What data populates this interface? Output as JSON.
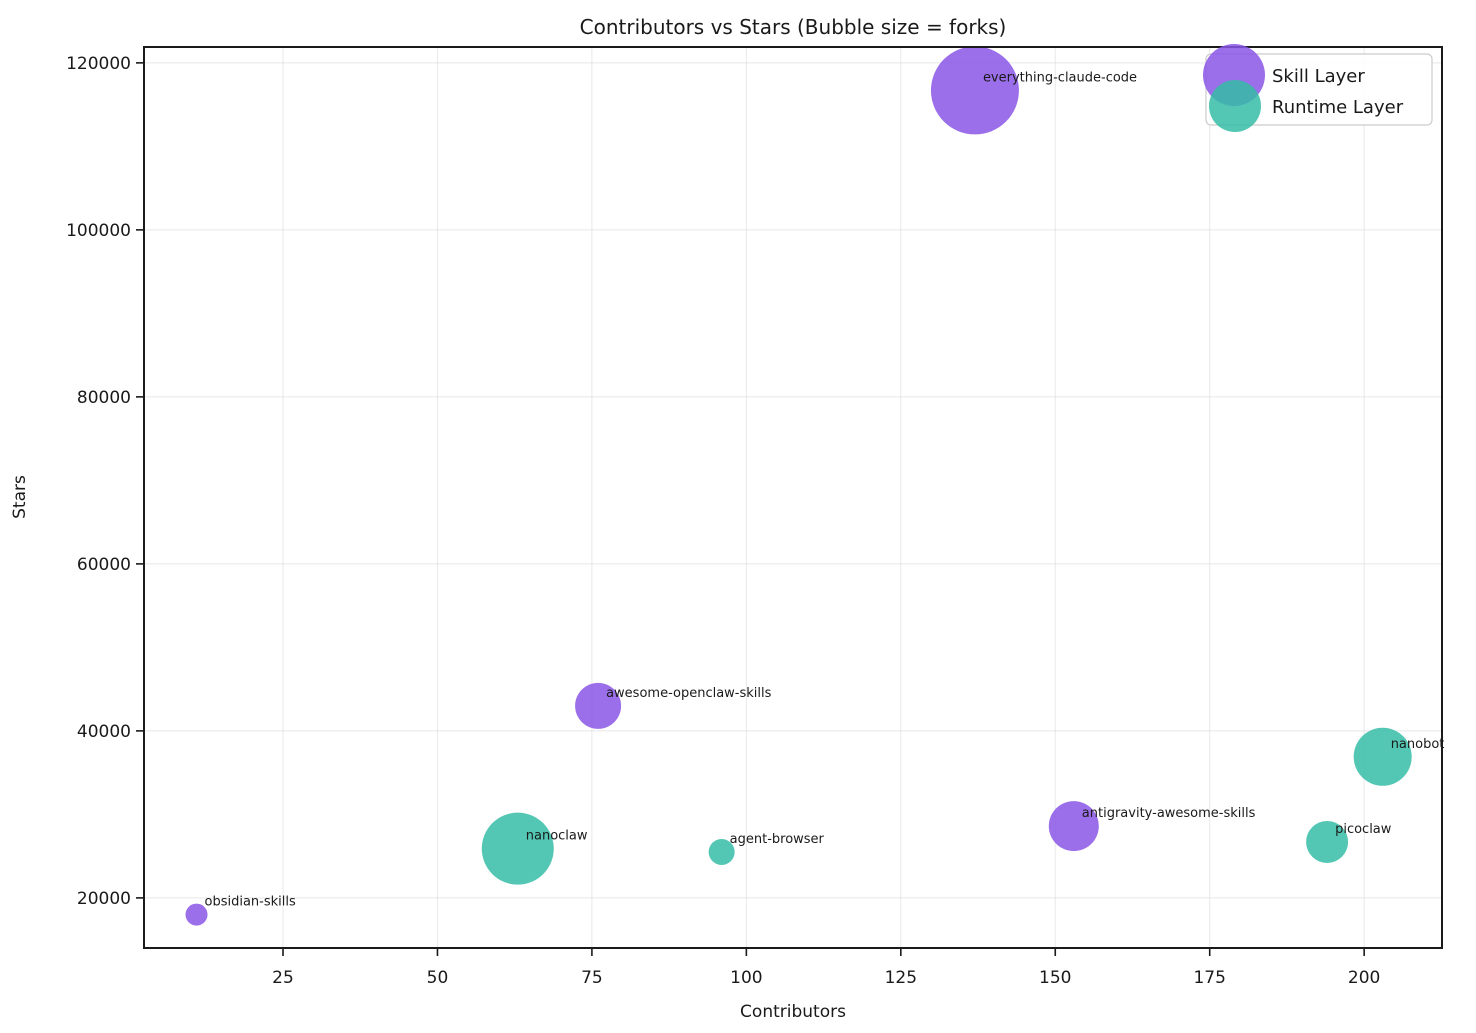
{
  "title": "Contributors vs Stars (Bubble size = forks)",
  "axes": {
    "xlabel": "Contributors",
    "ylabel": "Stars",
    "x_ticks": [
      25,
      50,
      75,
      100,
      125,
      150,
      175,
      200
    ],
    "y_ticks": [
      20000,
      40000,
      60000,
      80000,
      100000,
      120000
    ]
  },
  "chart_data": {
    "type": "scatter",
    "subtype": "bubble",
    "title": "Contributors vs Stars (Bubble size = forks)",
    "xlabel": "Contributors",
    "ylabel": "Stars",
    "xlim": [
      2.5,
      212.6
    ],
    "ylim": [
      14000,
      121900
    ],
    "grid": true,
    "legend_position": "upper right",
    "bubble_size_meaning": "forks",
    "series": [
      {
        "name": "Skill Layer",
        "color": "#8a55e6",
        "points": [
          {
            "label": "everything-claude-code",
            "contributors": 137,
            "stars": 116700,
            "radius_px": 44
          },
          {
            "label": "awesome-openclaw-skills",
            "contributors": 76,
            "stars": 43000,
            "radius_px": 23
          },
          {
            "label": "antigravity-awesome-skills",
            "contributors": 153,
            "stars": 28600,
            "radius_px": 25
          },
          {
            "label": "obsidian-skills",
            "contributors": 11,
            "stars": 18000,
            "radius_px": 11
          }
        ]
      },
      {
        "name": "Runtime Layer",
        "color": "#35bda6",
        "points": [
          {
            "label": "nanobot",
            "contributors": 203,
            "stars": 36900,
            "radius_px": 29
          },
          {
            "label": "nanoclaw",
            "contributors": 63,
            "stars": 25900,
            "radius_px": 36
          },
          {
            "label": "agent-browser",
            "contributors": 96,
            "stars": 25500,
            "radius_px": 13
          },
          {
            "label": "picoclaw",
            "contributors": 194,
            "stars": 26700,
            "radius_px": 21
          }
        ]
      }
    ]
  }
}
